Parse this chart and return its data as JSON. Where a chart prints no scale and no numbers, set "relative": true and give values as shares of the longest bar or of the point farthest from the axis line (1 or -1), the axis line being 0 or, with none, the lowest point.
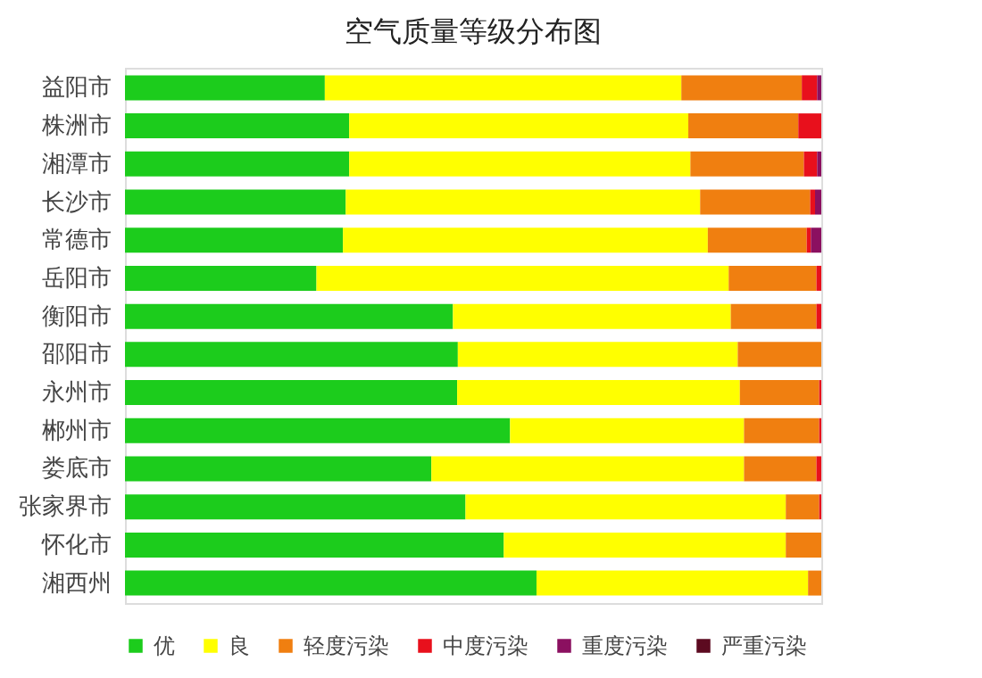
{
  "chart_data": {
    "type": "bar",
    "title": "空气质量等级分布图",
    "orientation": "horizontal",
    "stacked": true,
    "relative": true,
    "legend": "bottom",
    "grid": false,
    "categories": [
      "益阳市",
      "株洲市",
      "湘潭市",
      "长沙市",
      "常德市",
      "岳阳市",
      "衡阳市",
      "邵阳市",
      "永州市",
      "郴州市",
      "娄底市",
      "张家界市",
      "怀化市",
      "湘西州"
    ],
    "series": [
      {
        "name": "优",
        "color": "#1ccc1c",
        "values": [
          0.287,
          0.322,
          0.322,
          0.317,
          0.313,
          0.275,
          0.471,
          0.478,
          0.477,
          0.553,
          0.44,
          0.489,
          0.544,
          0.591
        ]
      },
      {
        "name": "良",
        "color": "#ffff00",
        "values": [
          0.512,
          0.487,
          0.49,
          0.509,
          0.524,
          0.592,
          0.399,
          0.402,
          0.406,
          0.336,
          0.449,
          0.46,
          0.405,
          0.39
        ]
      },
      {
        "name": "轻度污染",
        "color": "#f07f10",
        "values": [
          0.173,
          0.158,
          0.163,
          0.158,
          0.142,
          0.126,
          0.123,
          0.12,
          0.114,
          0.108,
          0.104,
          0.048,
          0.051,
          0.019
        ]
      },
      {
        "name": "中度污染",
        "color": "#e8101c",
        "values": [
          0.022,
          0.033,
          0.019,
          0.007,
          0.006,
          0.007,
          0.007,
          null,
          0.003,
          0.003,
          0.007,
          0.003,
          null,
          null
        ]
      },
      {
        "name": "重度污染",
        "color": "#8b1060",
        "values": [
          0.006,
          null,
          0.006,
          0.009,
          0.015,
          null,
          null,
          null,
          null,
          null,
          null,
          null,
          null,
          null
        ]
      },
      {
        "name": "严重污染",
        "color": "#5c0a20",
        "values": [
          null,
          null,
          null,
          null,
          null,
          null,
          null,
          null,
          null,
          null,
          null,
          null,
          null,
          null
        ]
      }
    ]
  }
}
